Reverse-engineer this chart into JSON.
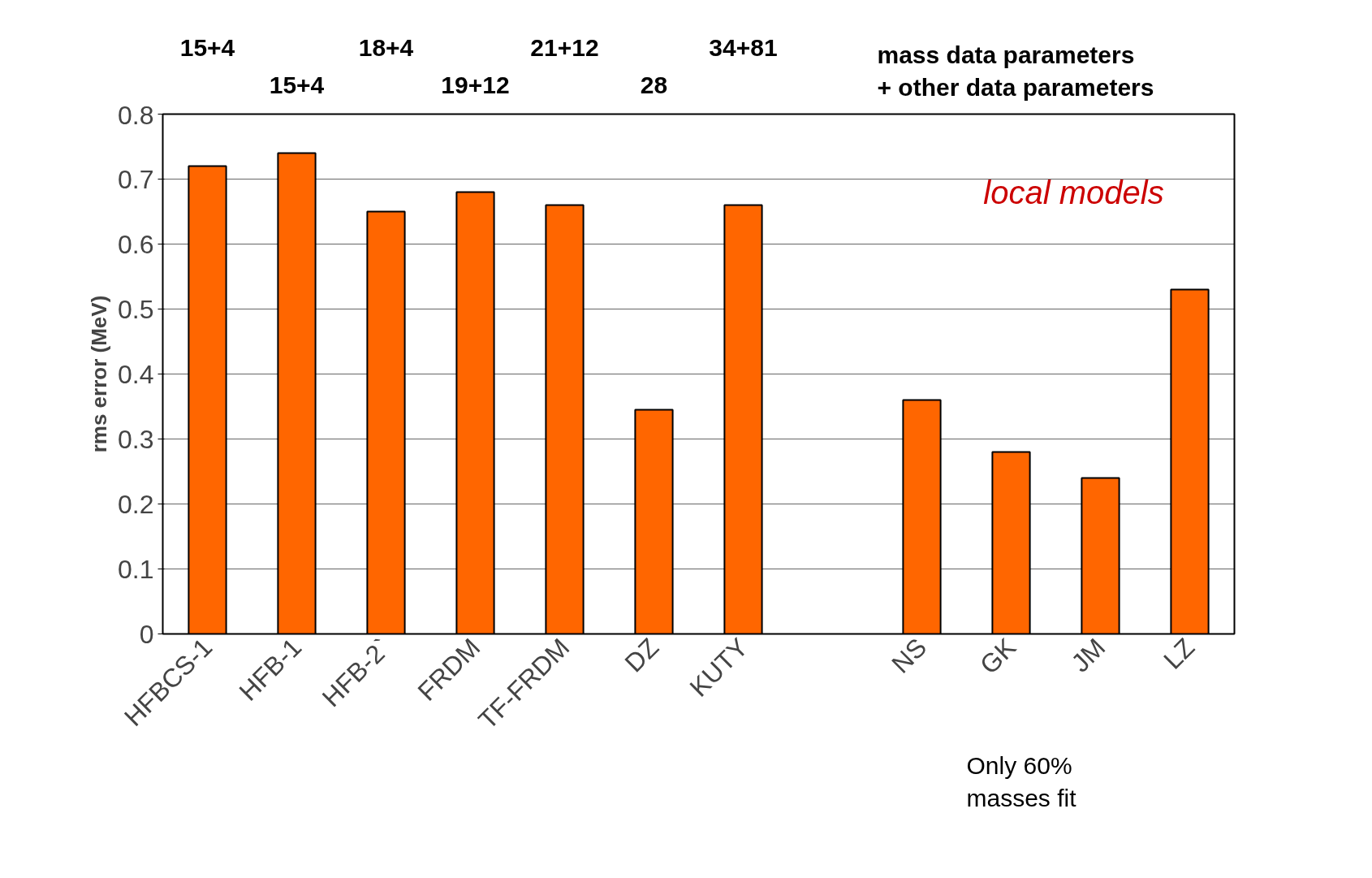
{
  "chart_data": {
    "type": "bar",
    "ylabel": "rms error (MeV)",
    "categories": [
      "HFBCS-1",
      "HFB-1",
      "HFB-2`",
      "FRDM",
      "TF-FRDM",
      "DZ",
      "KUTY",
      null,
      "NS",
      "GK",
      "JM",
      "LZ"
    ],
    "values": [
      0.72,
      0.74,
      0.65,
      0.68,
      0.66,
      0.345,
      0.66,
      null,
      0.36,
      0.28,
      0.24,
      0.53
    ],
    "color": "#ff6600",
    "ylim": [
      0,
      0.8
    ],
    "yticks": [
      0,
      0.1,
      0.2,
      0.3,
      0.4,
      0.5,
      0.6,
      0.7,
      0.8
    ],
    "grid": "y",
    "annotations": [
      "15+4",
      "15+4",
      "18+4",
      "19+12",
      "21+12",
      "28",
      "34+81",
      "mass data parameters\n+ other data parameters",
      "local models",
      "Only 60%\nmasses fit"
    ]
  }
}
